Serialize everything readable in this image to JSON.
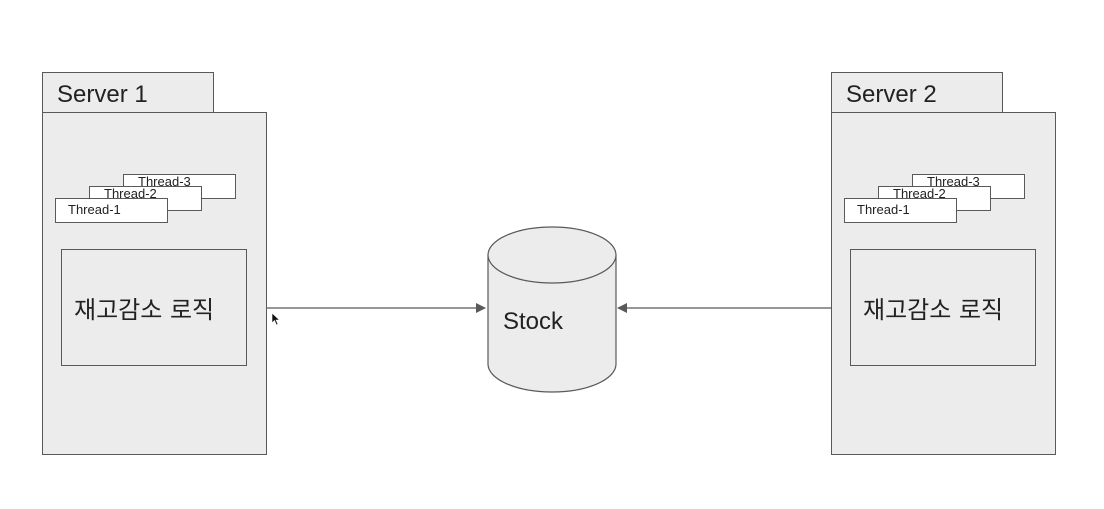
{
  "servers": [
    {
      "title": "Server 1",
      "threads": [
        "Thread-3",
        "Thread-2",
        "Thread-1"
      ],
      "logic_label": "재고감소 로직"
    },
    {
      "title": "Server 2",
      "threads": [
        "Thread-3",
        "Thread-2",
        "Thread-1"
      ],
      "logic_label": "재고감소 로직"
    }
  ],
  "database": {
    "label": "Stock"
  },
  "colors": {
    "fill": "#ececec",
    "stroke": "#595959",
    "background": "#ffffff"
  }
}
